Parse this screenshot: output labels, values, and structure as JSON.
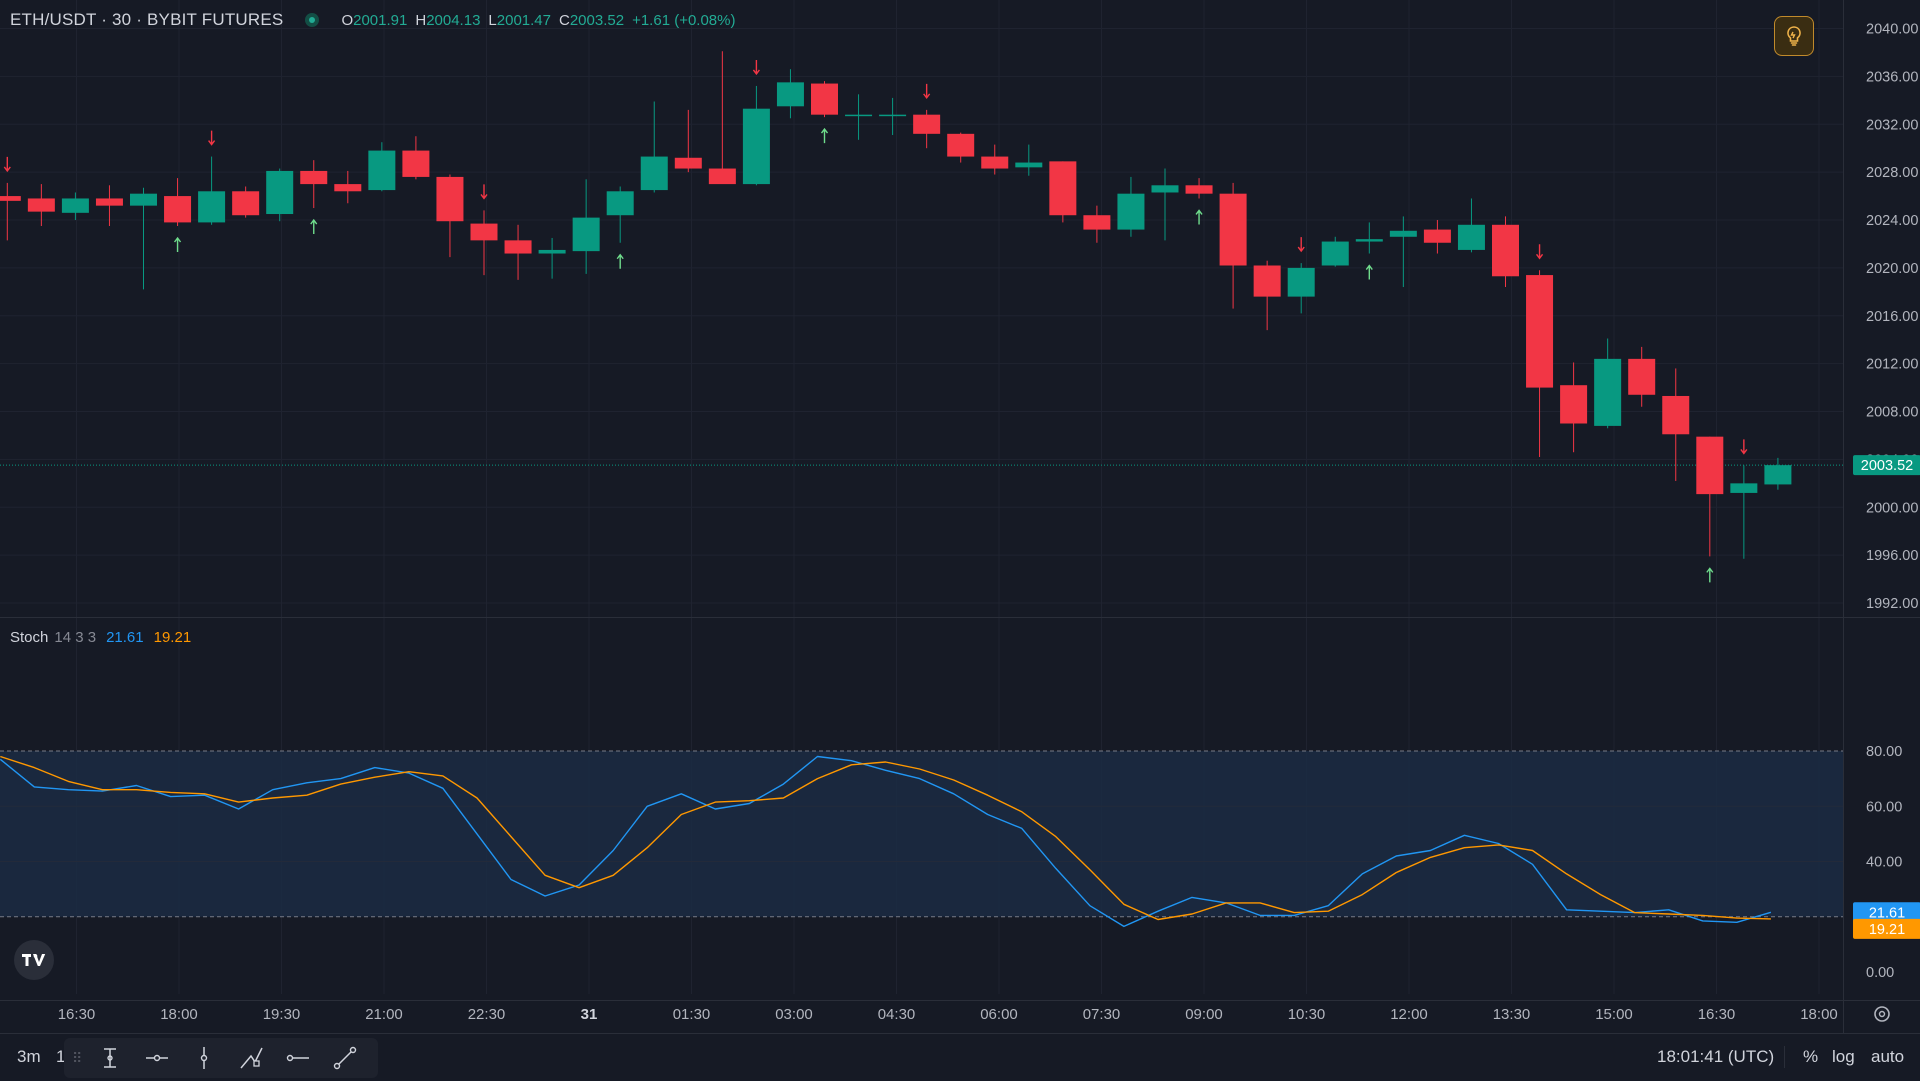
{
  "header": {
    "symbol": "ETH/USDT · 30 · BYBIT FUTURES",
    "o_label": "O",
    "o_value": "2001.91",
    "h_label": "H",
    "h_value": "2004.13",
    "l_label": "L",
    "l_value": "2001.47",
    "c_label": "C",
    "c_value": "2003.52",
    "change": "+1.61 (+0.08%)"
  },
  "stoch": {
    "name": "Stoch",
    "params": "14 3 3",
    "k_value": "21.61",
    "d_value": "19.21"
  },
  "colors": {
    "background": "#161a25",
    "up": "#089981",
    "down": "#f23645",
    "k_line": "#2196f3",
    "d_line": "#ff9800",
    "band": "#1b2b43"
  },
  "bottom_bar": {
    "range_3m": "3m",
    "range_1": "1",
    "clock": "18:01:41 (UTC)",
    "percent": "%",
    "log": "log",
    "auto": "auto",
    "tools": [
      "cross-line-icon",
      "horizontal-ray-icon",
      "vertical-line-icon",
      "path-icon",
      "horizontal-line-icon",
      "trend-line-icon"
    ]
  },
  "chart_data": [
    {
      "type": "candlestick",
      "title": "ETH/USDT · 30 · BYBIT FUTURES",
      "x_tick_labels": [
        "16:30",
        "18:00",
        "19:30",
        "21:00",
        "22:30",
        "31",
        "01:30",
        "03:00",
        "04:30",
        "06:00",
        "07:30",
        "09:00",
        "10:30",
        "12:00",
        "13:30",
        "15:00",
        "16:30",
        "18:00"
      ],
      "y_tick_labels": [
        "2040.00",
        "2036.00",
        "2032.00",
        "2028.00",
        "2024.00",
        "2020.00",
        "2016.00",
        "2012.00",
        "2008.00",
        "2004.00",
        "2000.00",
        "1996.00",
        "1992.00"
      ],
      "ylim": [
        1990.3,
        2041.8
      ],
      "last_price": 2003.52,
      "grid": true,
      "candles": [
        {
          "o": 2026.0,
          "h": 2027.1,
          "l": 2022.3,
          "c": 2025.6
        },
        {
          "o": 2025.8,
          "h": 2027.0,
          "l": 2023.5,
          "c": 2024.7
        },
        {
          "o": 2024.6,
          "h": 2026.3,
          "l": 2024.0,
          "c": 2025.8
        },
        {
          "o": 2025.8,
          "h": 2026.9,
          "l": 2023.5,
          "c": 2025.2
        },
        {
          "o": 2025.2,
          "h": 2026.7,
          "l": 2018.2,
          "c": 2026.2
        },
        {
          "o": 2026.0,
          "h": 2027.5,
          "l": 2023.5,
          "c": 2023.8
        },
        {
          "o": 2023.8,
          "h": 2029.3,
          "l": 2023.6,
          "c": 2026.4
        },
        {
          "o": 2026.4,
          "h": 2026.8,
          "l": 2024.2,
          "c": 2024.4
        },
        {
          "o": 2024.5,
          "h": 2028.3,
          "l": 2023.9,
          "c": 2028.1
        },
        {
          "o": 2028.1,
          "h": 2029.0,
          "l": 2025.0,
          "c": 2027.0
        },
        {
          "o": 2027.0,
          "h": 2028.1,
          "l": 2025.4,
          "c": 2026.4
        },
        {
          "o": 2026.5,
          "h": 2030.5,
          "l": 2026.4,
          "c": 2029.8
        },
        {
          "o": 2029.8,
          "h": 2031.0,
          "l": 2027.4,
          "c": 2027.6
        },
        {
          "o": 2027.6,
          "h": 2027.8,
          "l": 2020.9,
          "c": 2023.9
        },
        {
          "o": 2023.7,
          "h": 2024.8,
          "l": 2019.4,
          "c": 2022.3
        },
        {
          "o": 2022.3,
          "h": 2023.6,
          "l": 2019.0,
          "c": 2021.2
        },
        {
          "o": 2021.2,
          "h": 2022.5,
          "l": 2019.1,
          "c": 2021.5
        },
        {
          "o": 2021.4,
          "h": 2027.4,
          "l": 2019.5,
          "c": 2024.2
        },
        {
          "o": 2024.4,
          "h": 2026.8,
          "l": 2022.1,
          "c": 2026.4
        },
        {
          "o": 2026.5,
          "h": 2033.9,
          "l": 2026.3,
          "c": 2029.3
        },
        {
          "o": 2029.2,
          "h": 2033.2,
          "l": 2028.0,
          "c": 2028.3
        },
        {
          "o": 2028.3,
          "h": 2038.1,
          "l": 2027.2,
          "c": 2027.0
        },
        {
          "o": 2027.0,
          "h": 2035.2,
          "l": 2026.9,
          "c": 2033.3
        },
        {
          "o": 2033.5,
          "h": 2036.6,
          "l": 2032.5,
          "c": 2035.5
        },
        {
          "o": 2035.4,
          "h": 2035.6,
          "l": 2032.6,
          "c": 2032.8
        },
        {
          "o": 2032.8,
          "h": 2034.5,
          "l": 2030.7,
          "c": 2032.8
        },
        {
          "o": 2032.8,
          "h": 2034.2,
          "l": 2031.1,
          "c": 2032.8
        },
        {
          "o": 2032.8,
          "h": 2033.2,
          "l": 2030.0,
          "c": 2031.2
        },
        {
          "o": 2031.2,
          "h": 2031.3,
          "l": 2028.8,
          "c": 2029.3
        },
        {
          "o": 2029.3,
          "h": 2030.3,
          "l": 2027.8,
          "c": 2028.3
        },
        {
          "o": 2028.4,
          "h": 2030.3,
          "l": 2027.7,
          "c": 2028.8
        },
        {
          "o": 2028.9,
          "h": 2028.9,
          "l": 2023.8,
          "c": 2024.4
        },
        {
          "o": 2024.4,
          "h": 2025.2,
          "l": 2022.1,
          "c": 2023.2
        },
        {
          "o": 2023.2,
          "h": 2027.6,
          "l": 2022.6,
          "c": 2026.2
        },
        {
          "o": 2026.3,
          "h": 2028.3,
          "l": 2022.3,
          "c": 2026.9
        },
        {
          "o": 2026.9,
          "h": 2027.5,
          "l": 2025.8,
          "c": 2026.2
        },
        {
          "o": 2026.2,
          "h": 2027.1,
          "l": 2016.6,
          "c": 2020.2
        },
        {
          "o": 2020.2,
          "h": 2020.6,
          "l": 2014.8,
          "c": 2017.6
        },
        {
          "o": 2017.6,
          "h": 2020.4,
          "l": 2016.2,
          "c": 2020.0
        },
        {
          "o": 2020.2,
          "h": 2022.6,
          "l": 2020.1,
          "c": 2022.2
        },
        {
          "o": 2022.2,
          "h": 2023.8,
          "l": 2021.2,
          "c": 2022.4
        },
        {
          "o": 2022.6,
          "h": 2024.3,
          "l": 2018.4,
          "c": 2023.1
        },
        {
          "o": 2023.2,
          "h": 2024.0,
          "l": 2021.2,
          "c": 2022.1
        },
        {
          "o": 2021.5,
          "h": 2025.8,
          "l": 2021.3,
          "c": 2023.6
        },
        {
          "o": 2023.6,
          "h": 2024.3,
          "l": 2018.4,
          "c": 2019.3
        },
        {
          "o": 2019.4,
          "h": 2019.8,
          "l": 2004.2,
          "c": 2010.0
        },
        {
          "o": 2010.2,
          "h": 2012.1,
          "l": 2004.6,
          "c": 2007.0
        },
        {
          "o": 2006.8,
          "h": 2014.1,
          "l": 2006.6,
          "c": 2012.4
        },
        {
          "o": 2012.4,
          "h": 2013.4,
          "l": 2008.4,
          "c": 2009.4
        },
        {
          "o": 2009.3,
          "h": 2011.6,
          "l": 2002.2,
          "c": 2006.1
        },
        {
          "o": 2005.9,
          "h": 2005.9,
          "l": 1995.9,
          "c": 2001.1
        },
        {
          "o": 2001.2,
          "h": 2003.5,
          "l": 1995.7,
          "c": 2002.0
        },
        {
          "o": 2001.91,
          "h": 2004.13,
          "l": 2001.47,
          "c": 2003.52
        }
      ],
      "signals": [
        {
          "i": 0,
          "dir": "down"
        },
        {
          "i": 5,
          "dir": "up"
        },
        {
          "i": 6,
          "dir": "down"
        },
        {
          "i": 9,
          "dir": "up"
        },
        {
          "i": 14,
          "dir": "down"
        },
        {
          "i": 18,
          "dir": "up"
        },
        {
          "i": 22,
          "dir": "down"
        },
        {
          "i": 24,
          "dir": "up"
        },
        {
          "i": 27,
          "dir": "down"
        },
        {
          "i": 35,
          "dir": "up"
        },
        {
          "i": 38,
          "dir": "down"
        },
        {
          "i": 40,
          "dir": "up"
        },
        {
          "i": 45,
          "dir": "down"
        },
        {
          "i": 50,
          "dir": "up"
        },
        {
          "i": 51,
          "dir": "down"
        }
      ]
    },
    {
      "type": "line",
      "title": "Stoch 14 3 3",
      "y_tick_labels": [
        "80.00",
        "60.00",
        "40.00",
        "0.00"
      ],
      "ylim": [
        0,
        80
      ],
      "band": [
        20,
        80
      ],
      "series": [
        {
          "name": "%K",
          "color": "#2196f3",
          "last_label": "21.61",
          "values": [
            77.0,
            67.0,
            66.0,
            65.5,
            67.5,
            63.5,
            64.0,
            59.0,
            66.0,
            68.5,
            70.0,
            74.0,
            72.0,
            66.5,
            50.0,
            33.5,
            27.5,
            31.5,
            44.0,
            60.0,
            64.5,
            59.0,
            61.0,
            68.0,
            78.0,
            76.5,
            73.0,
            70.0,
            64.5,
            57.0,
            52.0,
            37.5,
            24.0,
            16.5,
            22.0,
            27.0,
            25.0,
            20.5,
            20.5,
            24.0,
            35.5,
            42.0,
            44.0,
            49.5,
            46.5,
            39.0,
            22.5,
            22.0,
            21.5,
            22.5,
            18.5,
            18.0,
            21.61
          ]
        },
        {
          "name": "%D",
          "color": "#ff9800",
          "last_label": "19.21",
          "values": [
            78.0,
            74.0,
            69.0,
            66.0,
            66.0,
            65.0,
            64.5,
            61.5,
            63.0,
            64.0,
            68.0,
            70.5,
            72.5,
            71.0,
            63.0,
            49.0,
            35.0,
            30.5,
            35.0,
            45.0,
            57.0,
            61.5,
            62.0,
            63.0,
            70.0,
            75.0,
            76.0,
            73.5,
            69.5,
            64.0,
            58.0,
            49.0,
            37.0,
            24.5,
            19.0,
            21.0,
            25.0,
            25.0,
            21.5,
            22.0,
            28.0,
            36.0,
            41.5,
            45.0,
            46.0,
            44.0,
            35.5,
            28.0,
            21.5,
            21.0,
            20.5,
            19.5,
            19.21
          ]
        }
      ]
    }
  ]
}
